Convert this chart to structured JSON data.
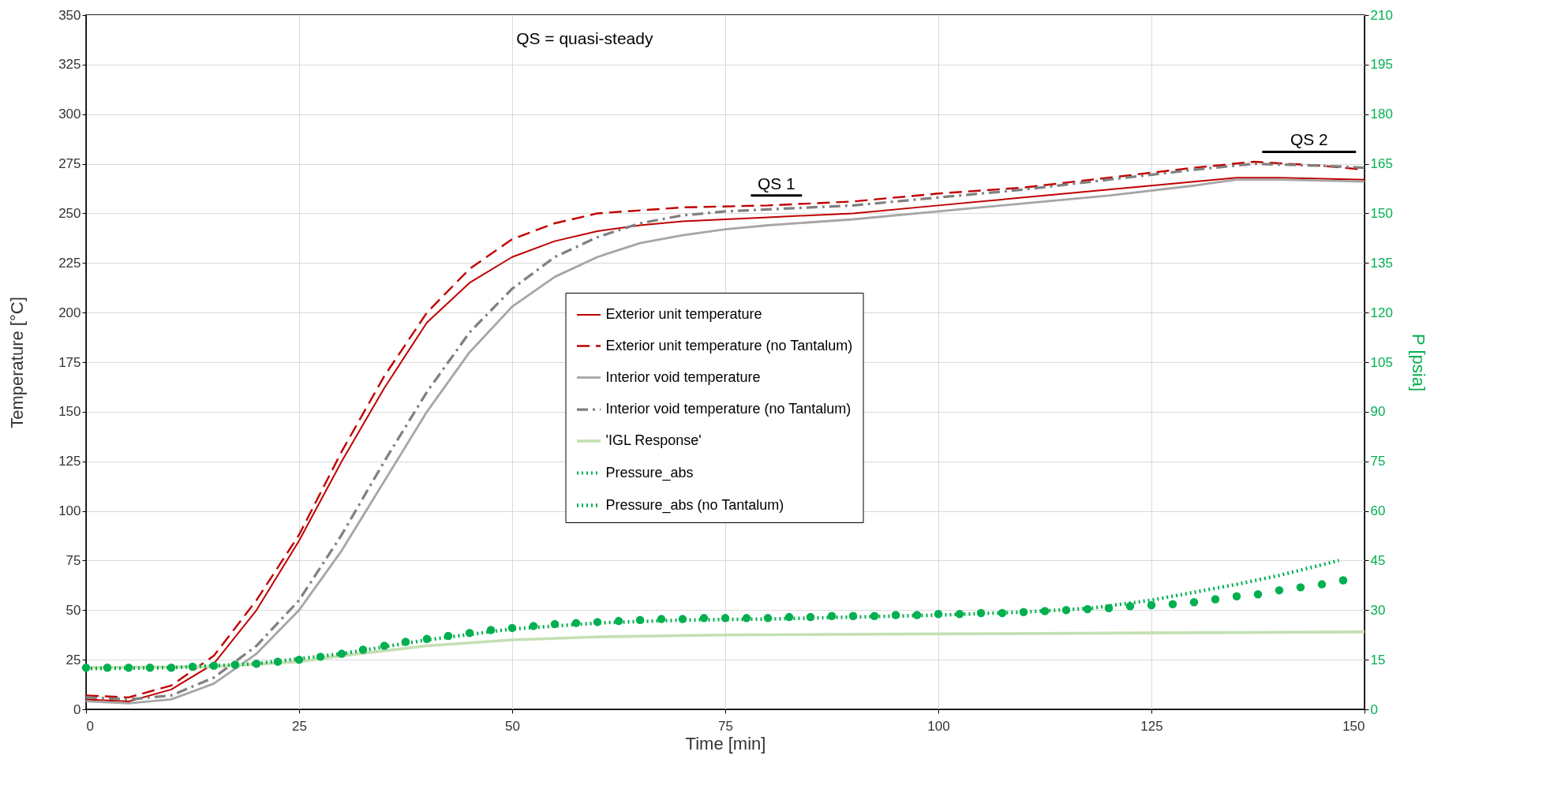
{
  "chart_data": {
    "type": "line",
    "xlabel": "Time [min]",
    "ylabel": "Temperature  [°C]",
    "y2label": "P [psia]",
    "xlim": [
      0,
      150
    ],
    "xticks": [
      0,
      25,
      50,
      75,
      100,
      125,
      150
    ],
    "ylim": [
      0,
      350
    ],
    "yticks": [
      0,
      25,
      50,
      75,
      100,
      125,
      150,
      175,
      200,
      225,
      250,
      275,
      300,
      325,
      350
    ],
    "y2lim": [
      0,
      210
    ],
    "y2ticks": [
      0,
      15,
      30,
      45,
      60,
      75,
      90,
      105,
      120,
      135,
      150,
      165,
      180,
      195,
      210
    ],
    "grid": true,
    "legend": "right",
    "annotations": [
      "QS = quasi-steady",
      {
        "text": "QS 1",
        "x": 81,
        "y": 259
      },
      {
        "text": "QS 2",
        "x": 143.5,
        "y": 281
      }
    ],
    "series": [
      {
        "name": "Exterior unit temperature",
        "color": "#c00000",
        "line_style": "solid",
        "x": [
          0,
          5,
          10,
          15,
          20,
          25,
          30,
          35,
          40,
          45,
          50,
          55,
          60,
          65,
          70,
          75,
          80,
          90,
          100,
          110,
          120,
          130,
          135,
          140,
          150
        ],
        "values": [
          5,
          4,
          10,
          23,
          50,
          85,
          125,
          162,
          195,
          215,
          228,
          236,
          241,
          244,
          246,
          247,
          248,
          250,
          254,
          258,
          262,
          266,
          268,
          268,
          267
        ]
      },
      {
        "name": "Exterior unit temperature (no Tantalum)",
        "color": "#c00000",
        "line_style": "dashed",
        "x": [
          0,
          5,
          10,
          15,
          20,
          25,
          30,
          35,
          40,
          45,
          50,
          55,
          60,
          70,
          80,
          90,
          100,
          110,
          120,
          130,
          137,
          145,
          150
        ],
        "values": [
          7,
          6,
          12,
          27,
          55,
          88,
          130,
          168,
          200,
          222,
          237,
          245,
          250,
          253,
          254,
          256,
          260,
          263,
          268,
          273,
          276,
          274,
          272
        ]
      },
      {
        "name": "Interior void temperature",
        "color": "#a6a6a6",
        "line_style": "solid",
        "x": [
          0,
          5,
          10,
          15,
          20,
          25,
          30,
          35,
          40,
          45,
          50,
          55,
          60,
          65,
          70,
          75,
          80,
          90,
          100,
          110,
          120,
          130,
          135,
          140,
          150
        ],
        "values": [
          4,
          3,
          5,
          13,
          28,
          50,
          80,
          115,
          150,
          180,
          203,
          218,
          228,
          235,
          239,
          242,
          244,
          247,
          251,
          255,
          259,
          264,
          267,
          267,
          266
        ]
      },
      {
        "name": "Interior void temperature (no Tantalum)",
        "color": "#808080",
        "line_style": "dashdot",
        "x": [
          0,
          5,
          10,
          15,
          20,
          25,
          30,
          35,
          40,
          45,
          50,
          55,
          60,
          65,
          70,
          75,
          80,
          90,
          100,
          110,
          120,
          130,
          137,
          145,
          150
        ],
        "values": [
          6,
          5,
          7,
          16,
          32,
          55,
          88,
          125,
          160,
          190,
          212,
          228,
          238,
          245,
          249,
          251,
          252,
          254,
          258,
          262,
          267,
          272,
          275,
          274,
          273
        ]
      },
      {
        "name": "'IGL Response'",
        "color": "#c5e0b4",
        "line_style": "solid",
        "axis": "y2",
        "x": [
          0,
          15,
          25,
          30,
          40,
          50,
          60,
          75,
          100,
          125,
          150
        ],
        "values": [
          12.6,
          12.9,
          14.4,
          16.2,
          19.2,
          21,
          21.9,
          22.5,
          22.8,
          23.1,
          23.4
        ]
      },
      {
        "name": "Pressure_abs",
        "color": "#00b050",
        "type": "scatter",
        "marker": "circle",
        "axis": "y2",
        "x": [
          0,
          2.5,
          5,
          7.5,
          10,
          12.5,
          15,
          17.5,
          20,
          22.5,
          25,
          27.5,
          30,
          32.5,
          35,
          37.5,
          40,
          42.5,
          45,
          47.5,
          50,
          52.5,
          55,
          57.5,
          60,
          62.5,
          65,
          67.5,
          70,
          72.5,
          75,
          77.5,
          80,
          82.5,
          85,
          87.5,
          90,
          92.5,
          95,
          97.5,
          100,
          102.5,
          105,
          107.5,
          110,
          112.5,
          115,
          117.5,
          120,
          122.5,
          125,
          127.5,
          130,
          132.5,
          135,
          137.5,
          140,
          142.5,
          145,
          147.5
        ],
        "values": [
          12.6,
          12.6,
          12.6,
          12.6,
          12.6,
          12.9,
          13.2,
          13.5,
          13.8,
          14.4,
          15,
          15.9,
          16.8,
          18,
          19.2,
          20.4,
          21.3,
          22.2,
          23.1,
          24,
          24.6,
          25.2,
          25.8,
          26.1,
          26.4,
          26.7,
          27,
          27.3,
          27.3,
          27.6,
          27.6,
          27.6,
          27.6,
          27.9,
          27.9,
          28.2,
          28.2,
          28.2,
          28.5,
          28.5,
          28.8,
          28.8,
          29.1,
          29.1,
          29.4,
          29.7,
          30,
          30.3,
          30.6,
          31.2,
          31.5,
          31.8,
          32.4,
          33.3,
          34.2,
          34.8,
          36,
          36.9,
          37.8,
          39
        ]
      },
      {
        "name": "Pressure_abs (no Tantalum)",
        "color": "#00b050",
        "line_style": "dotted",
        "axis": "y2",
        "x": [
          0,
          10,
          20,
          30,
          40,
          50,
          60,
          70,
          80,
          90,
          100,
          110,
          118,
          125,
          130,
          135,
          140,
          147
        ],
        "values": [
          12.3,
          12.6,
          13.8,
          16.8,
          21,
          24.3,
          26.1,
          27,
          27.3,
          27.9,
          28.5,
          29.4,
          30.6,
          33,
          35.4,
          37.8,
          40.5,
          45
        ]
      },
      {
        "color": "#000000",
        "line_style": "solid",
        "x": [
          78,
          84
        ],
        "values": [
          259,
          259
        ]
      },
      {
        "color": "#000000",
        "line_style": "solid",
        "x": [
          138,
          149
        ],
        "values": [
          281,
          281
        ]
      }
    ]
  }
}
